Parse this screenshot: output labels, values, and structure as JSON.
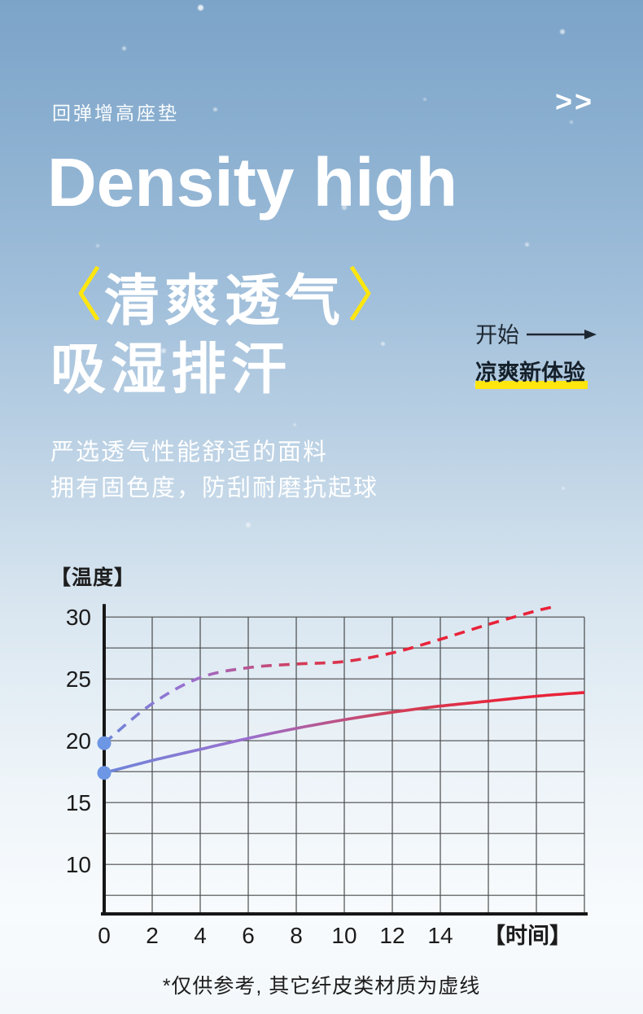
{
  "colors": {
    "accent_yellow": "#ffe60f",
    "text_white": "#ffffff",
    "text_dark": "#1f1f1f",
    "bg_top": "#7ba4c9",
    "bg_bottom": "#f4f8fb",
    "line_gradient_start": "#6d86d9",
    "line_gradient_mid": "#9b6fce",
    "line_gradient_end": "#e82339",
    "start_dot": "#6d96e4",
    "axis": "#161616",
    "grid": "#3a3a3a"
  },
  "header": {
    "tagline": "回弹增高座垫",
    "chevrons": ">>"
  },
  "hero": {
    "title_en": "Density high",
    "headline_bracket_left": "〈",
    "headline_main": "清爽透气",
    "headline_bracket_right": "〉",
    "headline_line2": "吸湿排汗",
    "cta_label": "开始",
    "cta_highlight": "凉爽新体验",
    "description_line1": "严选透气性能舒适的面料",
    "description_line2": "拥有固色度，防刮耐磨抗起球"
  },
  "chart_data": {
    "type": "line",
    "title": "",
    "y_axis_label": "【温度】",
    "x_axis_label": "【时间】",
    "x_range": [
      0,
      20
    ],
    "y_range": [
      6,
      31.5
    ],
    "x_ticks": [
      0,
      2,
      4,
      6,
      8,
      10,
      12,
      14
    ],
    "y_ticks": [
      30,
      25,
      20,
      15,
      10
    ],
    "x_grid_step": 2,
    "y_grid_step": 2.5,
    "y_grid_top": 30,
    "y_grid_bottom": 7.5,
    "grid": true,
    "legend": "none",
    "series": [
      {
        "name": "solid",
        "style": "solid",
        "x": [
          0,
          2,
          4,
          6,
          8,
          10,
          12,
          14,
          16,
          18,
          20
        ],
        "y": [
          17.4,
          18.4,
          19.3,
          20.2,
          21.0,
          21.7,
          22.3,
          22.8,
          23.2,
          23.6,
          23.9
        ],
        "start_dot": true
      },
      {
        "name": "dashed",
        "style": "dashed",
        "x": [
          0,
          2,
          4,
          6,
          8,
          10,
          12,
          14,
          16,
          18,
          18.9
        ],
        "y": [
          19.8,
          23.0,
          25.1,
          25.9,
          26.2,
          26.4,
          27.1,
          28.2,
          29.4,
          30.5,
          30.9
        ],
        "start_dot": true
      }
    ],
    "footnote": "*仅供参考, 其它纤皮类材质为虚线"
  }
}
